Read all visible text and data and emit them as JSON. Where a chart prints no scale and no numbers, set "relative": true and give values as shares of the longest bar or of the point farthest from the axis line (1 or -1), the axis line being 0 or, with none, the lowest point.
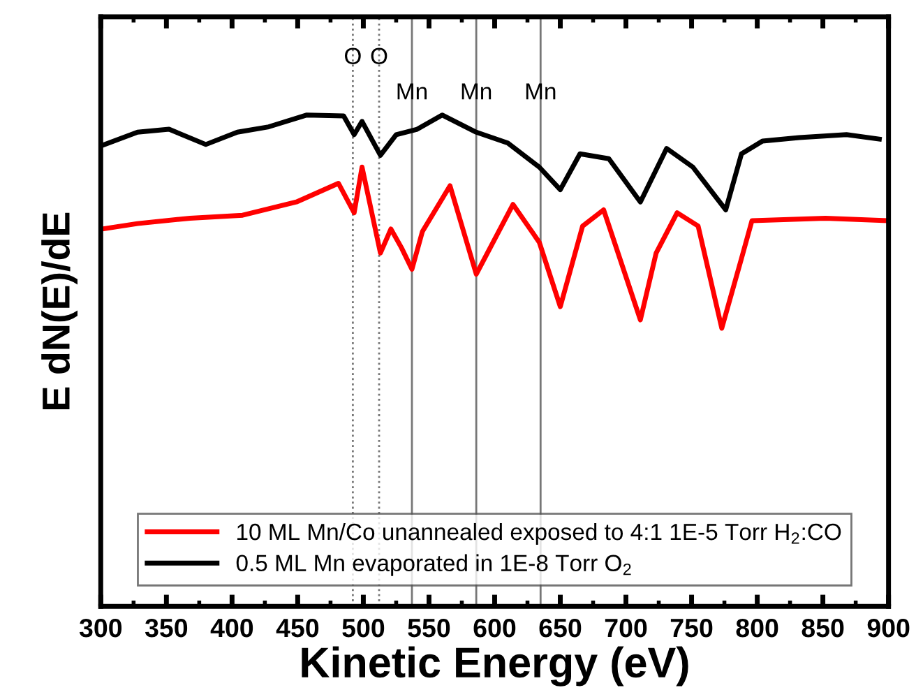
{
  "chart_data": {
    "type": "line",
    "xlabel": "Kinetic Energy (eV)",
    "ylabel": "E dN(E)/dE",
    "relative": true,
    "xlim": [
      300,
      900
    ],
    "xticks": [
      300,
      {
        "value": 325,
        "label": null
      },
      350,
      {
        "value": 375,
        "label": null
      },
      400,
      {
        "value": 425,
        "label": null
      },
      450,
      {
        "value": 475,
        "label": null
      },
      500,
      {
        "value": 525,
        "label": null
      },
      550,
      {
        "value": 575,
        "label": null
      },
      600,
      {
        "value": 625,
        "label": null
      },
      650,
      {
        "value": 675,
        "label": null
      },
      700,
      {
        "value": 725,
        "label": null
      },
      750,
      {
        "value": 775,
        "label": null
      },
      800,
      {
        "value": 825,
        "label": null
      },
      850,
      {
        "value": 875,
        "label": null
      },
      900
    ],
    "legend": "bottom",
    "grid": false,
    "marker": "none",
    "line_style": "solid",
    "ref_lines": [
      {
        "axis": "x",
        "value": 492,
        "label": "O",
        "color": "#777777",
        "line_style": "dotted"
      },
      {
        "axis": "x",
        "value": 512,
        "label": "O",
        "color": "#777777",
        "line_style": "dotted"
      },
      {
        "axis": "x",
        "value": 537,
        "label": "Mn",
        "color": "#777777",
        "line_style": "solid"
      },
      {
        "axis": "x",
        "value": 586,
        "label": "Mn",
        "color": "#777777",
        "line_style": "solid"
      },
      {
        "axis": "x",
        "value": 635,
        "label": "Mn",
        "color": "#777777",
        "line_style": "solid"
      }
    ],
    "series": [
      {
        "name": "10 ML Mn/Co unannealed exposed to 4:1 1E-5 Torr H$_{2}$:CO",
        "color": "#ff0000",
        "x": [
          301,
          328,
          368,
          408,
          449,
          481,
          493,
          499,
          513,
          521,
          529,
          537,
          545,
          566,
          586,
          614,
          634,
          650,
          667,
          683,
          711,
          723,
          739,
          755,
          773,
          788,
          796,
          852,
          899
        ],
        "values": [
          0.768,
          0.779,
          0.79,
          0.796,
          0.823,
          0.861,
          0.801,
          0.894,
          0.719,
          0.768,
          0.73,
          0.686,
          0.763,
          0.856,
          0.676,
          0.818,
          0.741,
          0.61,
          0.774,
          0.807,
          0.583,
          0.719,
          0.801,
          0.774,
          0.566,
          0.708,
          0.785,
          0.79,
          0.785
        ]
      },
      {
        "name": "0.5 ML Mn evaporated in 1E-8 Torr O$_{2}$",
        "color": "#000000",
        "x": [
          301,
          328,
          352,
          380,
          404,
          428,
          457,
          485,
          493,
          499,
          513,
          525,
          541,
          560,
          586,
          610,
          634,
          650,
          665,
          687,
          711,
          731,
          751,
          776,
          788,
          804,
          832,
          868,
          893
        ],
        "values": [
          0.938,
          0.965,
          0.971,
          0.94,
          0.965,
          0.976,
          1.0,
          0.998,
          0.96,
          0.987,
          0.918,
          0.96,
          0.971,
          1.0,
          0.965,
          0.943,
          0.894,
          0.848,
          0.921,
          0.911,
          0.823,
          0.932,
          0.894,
          0.807,
          0.921,
          0.947,
          0.954,
          0.96,
          0.951
        ]
      }
    ]
  }
}
